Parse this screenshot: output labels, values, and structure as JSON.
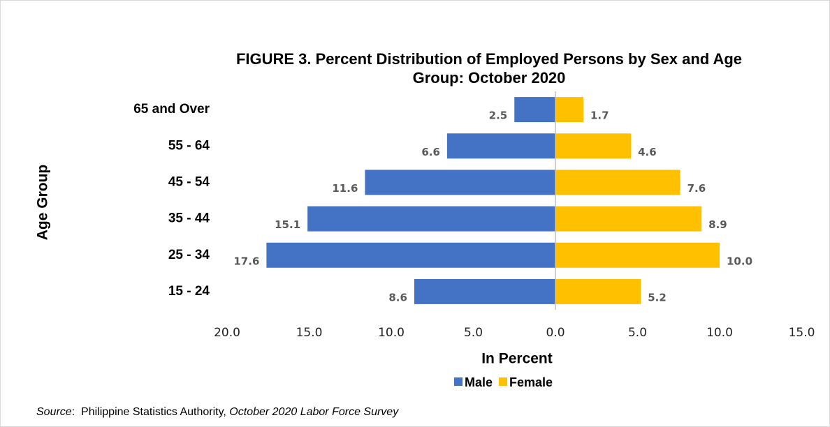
{
  "chart_data": {
    "type": "pyramid",
    "title": [
      "FIGURE 3. Percent Distribution of Employed Persons by Sex and Age",
      "Group: October 2020"
    ],
    "categories": [
      "65 and Over",
      "55 - 64",
      "45 - 54",
      "35 - 44",
      "25 - 34",
      "15 - 24"
    ],
    "series": [
      {
        "name": "Male",
        "color": "#4472c4",
        "values": [
          -2.5,
          -6.6,
          -11.6,
          -15.1,
          -17.6,
          -8.6
        ],
        "value_labels": [
          "2.5",
          "6.6",
          "11.6",
          "15.1",
          "17.6",
          "8.6"
        ]
      },
      {
        "name": "Female",
        "color": "#ffc000",
        "values": [
          1.7,
          4.6,
          7.6,
          8.9,
          10.0,
          5.2
        ],
        "value_labels": [
          "1.7",
          "4.6",
          "7.6",
          "8.9",
          "10.0",
          "5.2"
        ]
      }
    ],
    "xlim": [
      -20,
      15
    ],
    "xticks": [
      {
        "value": -20,
        "label": "20.0"
      },
      {
        "value": -15,
        "label": "15.0"
      },
      {
        "value": -10,
        "label": "10.0"
      },
      {
        "value": -5,
        "label": "5.0"
      },
      {
        "value": 0,
        "label": "0.0"
      },
      {
        "value": 5,
        "label": "5.0"
      },
      {
        "value": 10,
        "label": "10.0"
      },
      {
        "value": 15,
        "label": "15.0"
      }
    ],
    "xlabel": "In Percent",
    "ylabel": "Age Group",
    "legend": "bottom",
    "grid": false,
    "source": {
      "label": "Source",
      "text": ":  Philippine Statistics Authority, ",
      "survey": "October 2020 Labor Force Survey"
    }
  }
}
